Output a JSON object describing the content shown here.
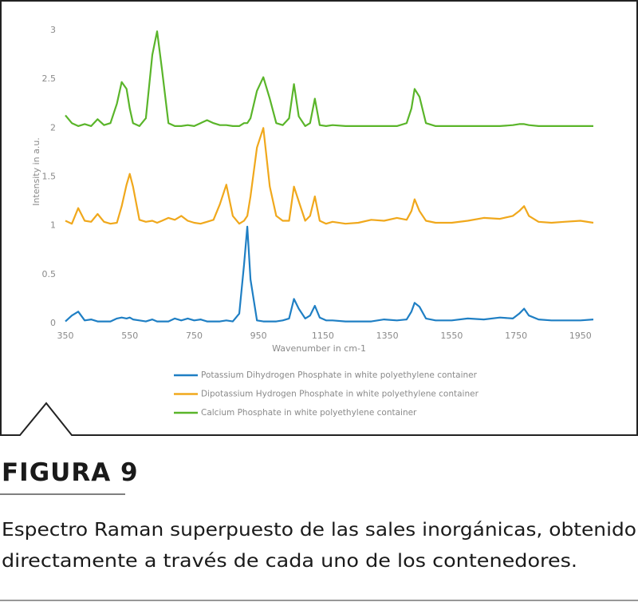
{
  "chart_data": {
    "type": "line",
    "xlabel": "Wavenumber in cm-1",
    "ylabel": "Intensity in a.u.",
    "x": [
      350,
      370,
      390,
      410,
      430,
      450,
      470,
      490,
      510,
      525,
      540,
      550,
      560,
      580,
      600,
      620,
      635,
      650,
      670,
      690,
      710,
      730,
      750,
      770,
      790,
      810,
      830,
      850,
      870,
      890,
      905,
      915,
      925,
      945,
      965,
      985,
      1005,
      1025,
      1045,
      1060,
      1075,
      1095,
      1110,
      1125,
      1140,
      1160,
      1180,
      1220,
      1260,
      1300,
      1340,
      1380,
      1410,
      1425,
      1435,
      1450,
      1470,
      1500,
      1550,
      1600,
      1650,
      1700,
      1740,
      1760,
      1775,
      1790,
      1820,
      1860,
      1900,
      1950,
      1990
    ],
    "series": [
      {
        "name": "Potassium Dihydrogen Phosphate in white polyethylene container",
        "color": "#1f7fc4",
        "values": [
          0.02,
          0.08,
          0.12,
          0.03,
          0.04,
          0.02,
          0.02,
          0.02,
          0.05,
          0.06,
          0.05,
          0.06,
          0.04,
          0.03,
          0.02,
          0.04,
          0.02,
          0.02,
          0.02,
          0.05,
          0.03,
          0.05,
          0.03,
          0.04,
          0.02,
          0.02,
          0.02,
          0.03,
          0.02,
          0.1,
          0.6,
          0.99,
          0.45,
          0.03,
          0.02,
          0.02,
          0.02,
          0.03,
          0.05,
          0.25,
          0.15,
          0.05,
          0.08,
          0.18,
          0.06,
          0.03,
          0.03,
          0.02,
          0.02,
          0.02,
          0.04,
          0.03,
          0.04,
          0.12,
          0.21,
          0.17,
          0.05,
          0.03,
          0.03,
          0.05,
          0.04,
          0.06,
          0.05,
          0.1,
          0.15,
          0.08,
          0.04,
          0.03,
          0.03,
          0.03,
          0.04
        ]
      },
      {
        "name": "Dipotassium Hydrogen Phosphate  in white polyethylene container",
        "color": "#f0a81c",
        "values": [
          1.05,
          1.02,
          1.18,
          1.05,
          1.04,
          1.12,
          1.04,
          1.02,
          1.03,
          1.2,
          1.42,
          1.53,
          1.4,
          1.06,
          1.04,
          1.05,
          1.03,
          1.05,
          1.08,
          1.06,
          1.1,
          1.05,
          1.03,
          1.02,
          1.04,
          1.06,
          1.22,
          1.42,
          1.1,
          1.02,
          1.05,
          1.1,
          1.3,
          1.8,
          2.0,
          1.4,
          1.1,
          1.05,
          1.05,
          1.4,
          1.25,
          1.05,
          1.1,
          1.3,
          1.05,
          1.02,
          1.04,
          1.02,
          1.03,
          1.06,
          1.05,
          1.08,
          1.06,
          1.15,
          1.27,
          1.15,
          1.05,
          1.03,
          1.03,
          1.05,
          1.08,
          1.07,
          1.1,
          1.15,
          1.2,
          1.1,
          1.04,
          1.03,
          1.04,
          1.05,
          1.03
        ]
      },
      {
        "name": "Calcium Phosphate  in white polyethylene container",
        "color": "#5ab52a",
        "values": [
          2.13,
          2.05,
          2.02,
          2.04,
          2.02,
          2.09,
          2.03,
          2.05,
          2.25,
          2.47,
          2.4,
          2.2,
          2.05,
          2.02,
          2.1,
          2.75,
          2.99,
          2.6,
          2.05,
          2.02,
          2.02,
          2.03,
          2.02,
          2.05,
          2.08,
          2.05,
          2.03,
          2.03,
          2.02,
          2.02,
          2.05,
          2.05,
          2.1,
          2.38,
          2.52,
          2.3,
          2.05,
          2.03,
          2.1,
          2.45,
          2.12,
          2.02,
          2.05,
          2.3,
          2.03,
          2.02,
          2.03,
          2.02,
          2.02,
          2.02,
          2.02,
          2.02,
          2.05,
          2.2,
          2.4,
          2.32,
          2.05,
          2.02,
          2.02,
          2.02,
          2.02,
          2.02,
          2.03,
          2.04,
          2.04,
          2.03,
          2.02,
          2.02,
          2.02,
          2.02,
          2.02
        ]
      }
    ],
    "xlim": [
      350,
      2000
    ],
    "ylim": [
      0,
      3
    ],
    "xticks": [
      350,
      550,
      750,
      950,
      1150,
      1350,
      1550,
      1750,
      1950
    ],
    "yticks": [
      0,
      0.5,
      1,
      1.5,
      2,
      2.5,
      3
    ],
    "grid": false,
    "legend": "bottom"
  },
  "caption": {
    "label": "FIGURA 9",
    "lines": [
      "Espectro Raman superpuesto de las sales inorgánicas, obtenido",
      "directamente a través de cada uno de los contenedores."
    ]
  }
}
